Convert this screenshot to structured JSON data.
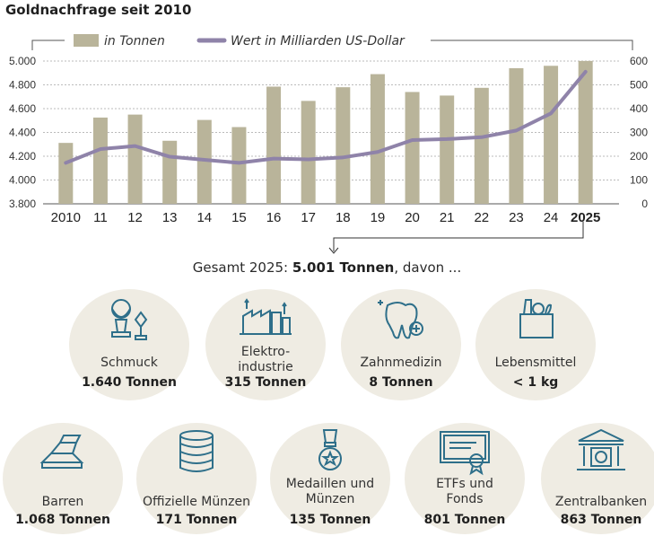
{
  "title": "Goldnachfrage seit 2010",
  "colors": {
    "bar": "#b9b49a",
    "line": "#8f83a9",
    "icon": "#2e6f8a",
    "circle": "#efece3"
  },
  "chart_data": {
    "type": "bar+line",
    "title": "Goldnachfrage seit 2010",
    "categories": [
      "2010",
      "11",
      "12",
      "13",
      "14",
      "15",
      "16",
      "17",
      "18",
      "19",
      "20",
      "21",
      "22",
      "23",
      "24",
      "2025"
    ],
    "series": [
      {
        "name": "in Tonnen",
        "kind": "bar",
        "axis": "left",
        "values": [
          4312,
          4525,
          4550,
          4330,
          4505,
          4445,
          4785,
          4665,
          4780,
          4890,
          4740,
          4710,
          4775,
          4940,
          4960,
          5001
        ]
      },
      {
        "name": "Wert in Milliarden US-Dollar",
        "kind": "line",
        "axis": "right",
        "values": [
          172,
          230,
          243,
          198,
          185,
          172,
          190,
          187,
          195,
          218,
          268,
          272,
          280,
          308,
          380,
          555
        ]
      }
    ],
    "y_left": {
      "min": 3800,
      "max": 5000,
      "ticks": [
        "3.800",
        "4.000",
        "4.200",
        "4.400",
        "4.600",
        "4.800",
        "5.000"
      ]
    },
    "y_right": {
      "min": 0,
      "max": 600,
      "ticks": [
        "0",
        "100",
        "200",
        "300",
        "400",
        "500",
        "600"
      ]
    },
    "bold_category": "2025",
    "legend_position": "top"
  },
  "summary": {
    "prefix": "Gesamt 2025: ",
    "total": "5.001 Tonnen",
    "suffix": ", davon ..."
  },
  "categories_row1": [
    {
      "label": "Schmuck",
      "amount": "1.640 Tonnen",
      "icon": "jewelry-icon"
    },
    {
      "label": "Elektro-\nindustrie",
      "amount": "315 Tonnen",
      "icon": "factory-icon"
    },
    {
      "label": "Zahnmedizin",
      "amount": "8 Tonnen",
      "icon": "tooth-icon"
    },
    {
      "label": "Lebensmittel",
      "amount": "< 1 kg",
      "icon": "grocery-bag-icon"
    }
  ],
  "categories_row2": [
    {
      "label": "Barren",
      "amount": "1.068 Tonnen",
      "icon": "gold-bars-icon"
    },
    {
      "label": "Offizielle Münzen",
      "amount": "171 Tonnen",
      "icon": "coin-stack-icon"
    },
    {
      "label": "Medaillen und\nMünzen",
      "amount": "135 Tonnen",
      "icon": "medal-icon"
    },
    {
      "label": "ETFs und\nFonds",
      "amount": "801 Tonnen",
      "icon": "certificate-icon"
    },
    {
      "label": "Zentralbanken",
      "amount": "863  Tonnen",
      "icon": "bank-icon"
    }
  ]
}
